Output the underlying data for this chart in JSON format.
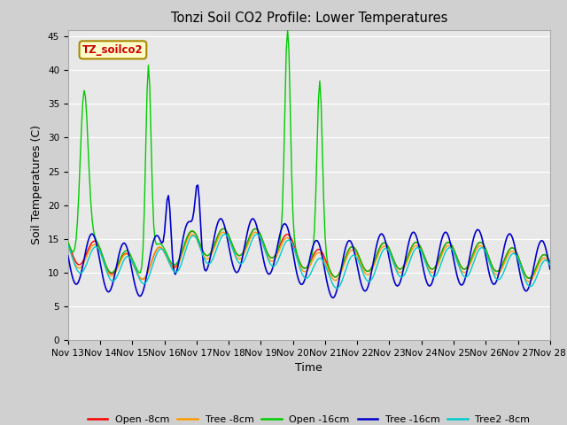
{
  "title": "Tonzi Soil CO2 Profile: Lower Temperatures",
  "xlabel": "Time",
  "ylabel": "Soil Temperatures (C)",
  "ylim": [
    0,
    46
  ],
  "yticks": [
    0,
    5,
    10,
    15,
    20,
    25,
    30,
    35,
    40,
    45
  ],
  "series_colors": [
    "#ff0000",
    "#ff9900",
    "#00cc00",
    "#0000cc",
    "#00cccc"
  ],
  "series_labels": [
    "Open -8cm",
    "Tree -8cm",
    "Open -16cm",
    "Tree -16cm",
    "Tree2 -8cm"
  ],
  "annotation_text": "TZ_soilco2",
  "annotation_bg": "#ffffcc",
  "annotation_border": "#aa8800",
  "xtick_labels": [
    "Nov 13",
    "Nov 14",
    "Nov 15",
    "Nov 16",
    "Nov 17",
    "Nov 18",
    "Nov 19",
    "Nov 20",
    "Nov 21",
    "Nov 22",
    "Nov 23",
    "Nov 24",
    "Nov 25",
    "Nov 26",
    "Nov 27",
    "Nov 28"
  ],
  "fig_bg": "#d0d0d0",
  "axes_bg": "#e8e8e8",
  "grid_color": "#ffffff"
}
